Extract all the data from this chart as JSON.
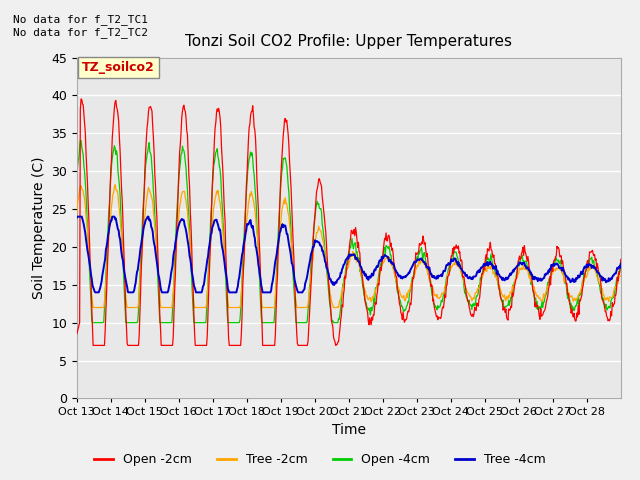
{
  "title": "Tonzi Soil CO2 Profile: Upper Temperatures",
  "xlabel": "Time",
  "ylabel": "Soil Temperature (C)",
  "ylim": [
    0,
    45
  ],
  "yticks": [
    0,
    5,
    10,
    15,
    20,
    25,
    30,
    35,
    40,
    45
  ],
  "annotation_top": "No data for f_T2_TC1\nNo data for f_T2_TC2",
  "legend_label": "TZ_soilco2",
  "plot_bg": "#e8e8e8",
  "fig_bg": "#f0f0f0",
  "colors": {
    "open_2cm": "#ff0000",
    "tree_2cm": "#ffa500",
    "open_4cm": "#00cc00",
    "tree_4cm": "#0000cc"
  },
  "xtick_labels": [
    "Oct 13",
    "Oct 14",
    "Oct 15",
    "Oct 16",
    "Oct 17",
    "Oct 18",
    "Oct 19",
    "Oct 20",
    "Oct 21",
    "Oct 22",
    "Oct 23",
    "Oct 24",
    "Oct 25",
    "Oct 26",
    "Oct 27",
    "Oct 28"
  ],
  "legend_items": [
    {
      "label": "Open -2cm",
      "color": "#ff0000"
    },
    {
      "label": "Tree -2cm",
      "color": "#ffa500"
    },
    {
      "label": "Open -4cm",
      "color": "#00cc00"
    },
    {
      "label": "Tree -4cm",
      "color": "#0000cc"
    }
  ]
}
